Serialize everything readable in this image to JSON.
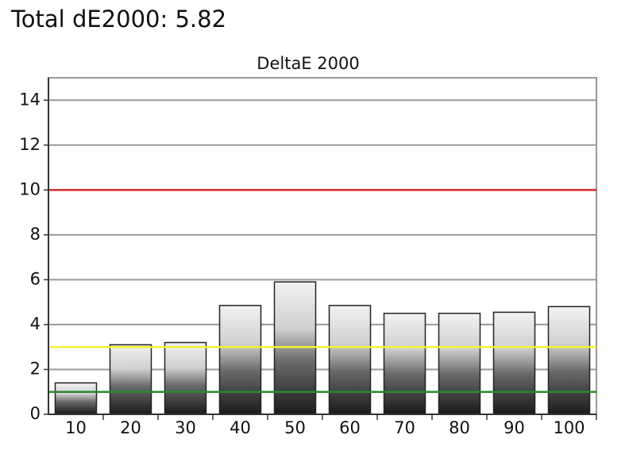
{
  "header": {
    "title": "Total dE2000: 5.82"
  },
  "chart_data": {
    "type": "bar",
    "title": "DeltaE 2000",
    "categories": [
      "10",
      "20",
      "30",
      "40",
      "50",
      "60",
      "70",
      "80",
      "90",
      "100"
    ],
    "values": [
      1.4,
      3.1,
      3.2,
      4.85,
      5.9,
      4.85,
      4.5,
      4.5,
      4.55,
      4.8
    ],
    "ylim": [
      0,
      15
    ],
    "yticks": [
      0,
      2,
      4,
      6,
      8,
      10,
      12,
      14
    ],
    "grid": true,
    "reference_lines": [
      {
        "value": 10,
        "color": "#d42a2a"
      },
      {
        "value": 3,
        "color": "#f2f23a"
      },
      {
        "value": 1,
        "color": "#2a8a2a"
      }
    ]
  }
}
